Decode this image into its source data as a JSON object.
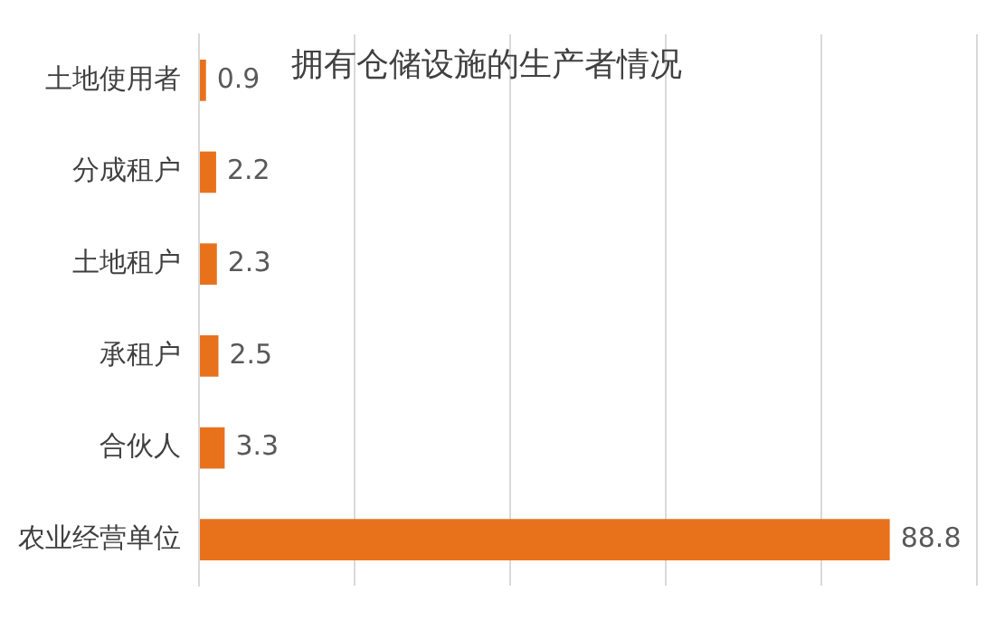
{
  "chart_data": {
    "type": "bar",
    "orientation": "horizontal",
    "title": "拥有仓储设施的生产者情况",
    "categories": [
      "土地使用者",
      "分成租户",
      "土地租户",
      "承租户",
      "合伙人",
      "农业经营单位"
    ],
    "values": [
      0.9,
      2.2,
      2.3,
      2.5,
      3.3,
      88.8
    ],
    "color": "#e8721c",
    "xlim": [
      0,
      100
    ],
    "xticks": [
      {
        "value": 0,
        "label": null
      },
      {
        "value": 20,
        "label": null
      },
      {
        "value": 40,
        "label": null
      },
      {
        "value": 60,
        "label": null
      },
      {
        "value": 80,
        "label": null
      },
      {
        "value": 100,
        "label": null
      }
    ],
    "tick_labels": "y",
    "grid": "x",
    "data_labels": true,
    "legend": false
  }
}
